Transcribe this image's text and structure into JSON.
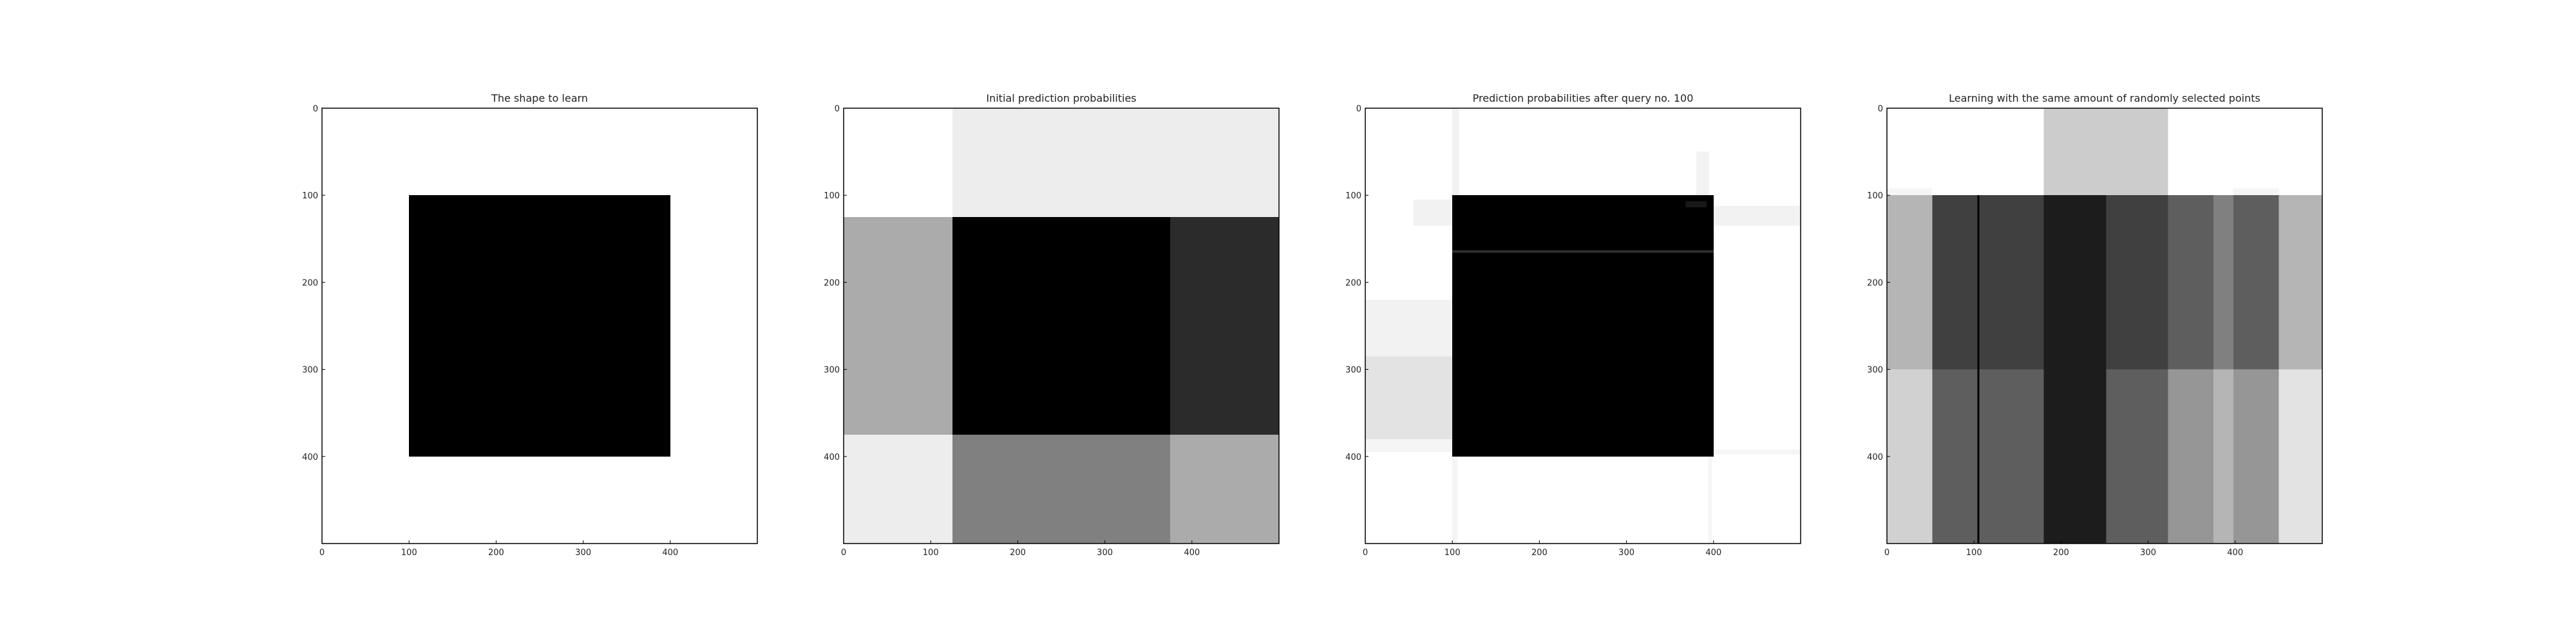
{
  "chart_data": [
    {
      "type": "heatmap",
      "title": "The shape to learn",
      "xlim": [
        0,
        500
      ],
      "ylim": [
        500,
        0
      ],
      "xticks": [
        "0",
        "100",
        "200",
        "300",
        "400"
      ],
      "yticks": [
        "0",
        "100",
        "200",
        "300",
        "400"
      ],
      "grid": false,
      "colormap": "greyscale, 0 = white, 1 = black",
      "rects": [
        {
          "x": [
            0,
            500
          ],
          "y": [
            0,
            500
          ],
          "value": 0
        },
        {
          "x": [
            100,
            400
          ],
          "y": [
            100,
            400
          ],
          "value": 1
        }
      ]
    },
    {
      "type": "heatmap",
      "title": "Initial prediction probabilities",
      "xlim": [
        0,
        500
      ],
      "ylim": [
        500,
        0
      ],
      "xticks": [
        "0",
        "100",
        "200",
        "300",
        "400"
      ],
      "yticks": [
        "0",
        "100",
        "200",
        "300",
        "400"
      ],
      "grid": false,
      "colormap": "greyscale, 0 = white, 1 = black",
      "rects": [
        {
          "x": [
            0,
            125
          ],
          "y": [
            0,
            125
          ],
          "value": 0
        },
        {
          "x": [
            125,
            500
          ],
          "y": [
            0,
            125
          ],
          "value": 0.07
        },
        {
          "x": [
            0,
            125
          ],
          "y": [
            125,
            375
          ],
          "value": 0.33
        },
        {
          "x": [
            125,
            375
          ],
          "y": [
            125,
            375
          ],
          "value": 1
        },
        {
          "x": [
            375,
            500
          ],
          "y": [
            125,
            375
          ],
          "value": 0.83
        },
        {
          "x": [
            0,
            125
          ],
          "y": [
            375,
            500
          ],
          "value": 0.07
        },
        {
          "x": [
            125,
            375
          ],
          "y": [
            375,
            500
          ],
          "value": 0.5
        },
        {
          "x": [
            375,
            500
          ],
          "y": [
            375,
            500
          ],
          "value": 0.33
        }
      ]
    },
    {
      "type": "heatmap",
      "title": "Prediction probabilities after query no. 100",
      "xlim": [
        0,
        500
      ],
      "ylim": [
        500,
        0
      ],
      "xticks": [
        "0",
        "100",
        "200",
        "300",
        "400"
      ],
      "yticks": [
        "0",
        "100",
        "200",
        "300",
        "400"
      ],
      "grid": false,
      "colormap": "greyscale, 0 = white, 1 = black",
      "rects": [
        {
          "x": [
            0,
            500
          ],
          "y": [
            0,
            500
          ],
          "value": 0
        },
        {
          "x": [
            0,
            100
          ],
          "y": [
            220,
            285
          ],
          "value": 0.05
        },
        {
          "x": [
            0,
            100
          ],
          "y": [
            285,
            380
          ],
          "value": 0.11
        },
        {
          "x": [
            0,
            100
          ],
          "y": [
            380,
            395
          ],
          "value": 0.04
        },
        {
          "x": [
            100,
            500
          ],
          "y": [
            392,
            398
          ],
          "value": 0.04
        },
        {
          "x": [
            55,
            100
          ],
          "y": [
            105,
            135
          ],
          "value": 0.05
        },
        {
          "x": [
            400,
            500
          ],
          "y": [
            112,
            135
          ],
          "value": 0.05
        },
        {
          "x": [
            100,
            108
          ],
          "y": [
            0,
            100
          ],
          "value": 0.05
        },
        {
          "x": [
            380,
            395
          ],
          "y": [
            50,
            100
          ],
          "value": 0.05
        },
        {
          "x": [
            100,
            106
          ],
          "y": [
            400,
            500
          ],
          "value": 0.04
        },
        {
          "x": [
            394,
            398
          ],
          "y": [
            400,
            500
          ],
          "value": 0.04
        },
        {
          "x": [
            100,
            400
          ],
          "y": [
            100,
            400
          ],
          "value": 1
        },
        {
          "x": [
            100,
            400
          ],
          "y": [
            163,
            166
          ],
          "value": 0.82
        },
        {
          "x": [
            368,
            392
          ],
          "y": [
            107,
            114
          ],
          "value": 0.9
        }
      ]
    },
    {
      "type": "heatmap",
      "title": "Learning with the same amount of randomly selected points",
      "xlim": [
        0,
        500
      ],
      "ylim": [
        500,
        0
      ],
      "xticks": [
        "0",
        "100",
        "200",
        "300",
        "400"
      ],
      "yticks": [
        "0",
        "100",
        "200",
        "300",
        "400"
      ],
      "grid": false,
      "colormap": "greyscale, 0 = white, 1 = black",
      "rects": [
        {
          "x": [
            0,
            500
          ],
          "y": [
            0,
            100
          ],
          "value": 0
        },
        {
          "x": [
            180,
            323
          ],
          "y": [
            0,
            100
          ],
          "value": 0.2
        },
        {
          "x": [
            0,
            52
          ],
          "y": [
            100,
            300
          ],
          "value": 0.29
        },
        {
          "x": [
            52,
            108
          ],
          "y": [
            100,
            300
          ],
          "value": 0.75
        },
        {
          "x": [
            108,
            180
          ],
          "y": [
            100,
            300
          ],
          "value": 0.75
        },
        {
          "x": [
            180,
            252
          ],
          "y": [
            100,
            300
          ],
          "value": 0.89
        },
        {
          "x": [
            252,
            323
          ],
          "y": [
            100,
            300
          ],
          "value": 0.75
        },
        {
          "x": [
            323,
            375
          ],
          "y": [
            100,
            300
          ],
          "value": 0.63
        },
        {
          "x": [
            375,
            398
          ],
          "y": [
            100,
            300
          ],
          "value": 0.5
        },
        {
          "x": [
            398,
            450
          ],
          "y": [
            100,
            300
          ],
          "value": 0.63
        },
        {
          "x": [
            450,
            500
          ],
          "y": [
            100,
            300
          ],
          "value": 0.29
        },
        {
          "x": [
            0,
            52
          ],
          "y": [
            300,
            500
          ],
          "value": 0.18
        },
        {
          "x": [
            52,
            108
          ],
          "y": [
            300,
            500
          ],
          "value": 0.63
        },
        {
          "x": [
            108,
            180
          ],
          "y": [
            300,
            500
          ],
          "value": 0.63
        },
        {
          "x": [
            180,
            252
          ],
          "y": [
            300,
            500
          ],
          "value": 0.89
        },
        {
          "x": [
            252,
            323
          ],
          "y": [
            300,
            500
          ],
          "value": 0.63
        },
        {
          "x": [
            323,
            375
          ],
          "y": [
            300,
            500
          ],
          "value": 0.41
        },
        {
          "x": [
            375,
            398
          ],
          "y": [
            300,
            500
          ],
          "value": 0.29
        },
        {
          "x": [
            398,
            450
          ],
          "y": [
            300,
            500
          ],
          "value": 0.41
        },
        {
          "x": [
            450,
            500
          ],
          "y": [
            300,
            500
          ],
          "value": 0.11
        },
        {
          "x": [
            104,
            106
          ],
          "y": [
            100,
            500
          ],
          "value": 1
        },
        {
          "x": [
            0,
            52
          ],
          "y": [
            92,
            100
          ],
          "value": 0.04
        },
        {
          "x": [
            398,
            450
          ],
          "y": [
            92,
            100
          ],
          "value": 0.04
        }
      ]
    }
  ]
}
